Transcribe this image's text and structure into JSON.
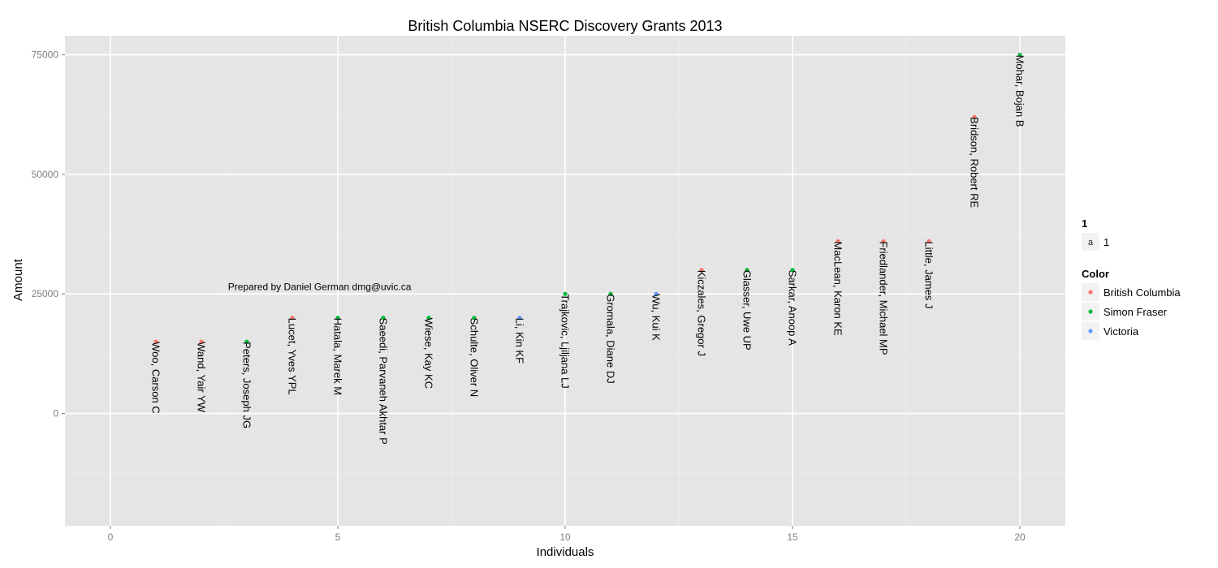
{
  "chart_data": {
    "type": "scatter",
    "title": "British Columbia NSERC Discovery Grants 2013",
    "xlabel": "Individuals",
    "ylabel": "Amount",
    "xlim": [
      -1,
      21
    ],
    "ylim": [
      -23500,
      79000
    ],
    "xticks": [
      0,
      5,
      10,
      15,
      20
    ],
    "yticks": [
      0,
      25000,
      50000,
      75000
    ],
    "grid": true,
    "annotation": {
      "text": "Prepared by Daniel German dmg@uvic.ca",
      "x": 4.6,
      "y": 26500
    },
    "legend_position": "right",
    "legend_size": {
      "title": "1",
      "key": "a",
      "label": "1"
    },
    "legend_color": {
      "title": "Color",
      "entries": [
        {
          "name": "British Columbia",
          "color": "#F8766D"
        },
        {
          "name": "Simon Fraser",
          "color": "#00BA38"
        },
        {
          "name": "Victoria",
          "color": "#619CFF"
        }
      ]
    },
    "points": [
      {
        "x": 1,
        "y": 15000,
        "group": "British Columbia",
        "label": "Woo, Carson C"
      },
      {
        "x": 2,
        "y": 15000,
        "group": "British Columbia",
        "label": "Wand, Yair YW"
      },
      {
        "x": 3,
        "y": 15000,
        "group": "Simon Fraser",
        "label": "Peters, Joseph JG"
      },
      {
        "x": 4,
        "y": 20000,
        "group": "British Columbia",
        "label": "Lucet, Yves YPL"
      },
      {
        "x": 5,
        "y": 20000,
        "group": "Simon Fraser",
        "label": "Hatala, Marek M"
      },
      {
        "x": 6,
        "y": 20000,
        "group": "Simon Fraser",
        "label": "Saeedi, Parvaneh Akhtar P"
      },
      {
        "x": 7,
        "y": 20000,
        "group": "Simon Fraser",
        "label": "Wiese, Kay KC"
      },
      {
        "x": 8,
        "y": 20000,
        "group": "Simon Fraser",
        "label": "Schulte, Oliver N"
      },
      {
        "x": 9,
        "y": 20000,
        "group": "Victoria",
        "label": "Li, Kin KF"
      },
      {
        "x": 10,
        "y": 25000,
        "group": "Simon Fraser",
        "label": "Trajkovic, Ljiljana LJ"
      },
      {
        "x": 11,
        "y": 25000,
        "group": "Simon Fraser",
        "label": "Gromala, Diane DJ"
      },
      {
        "x": 12,
        "y": 25000,
        "group": "Victoria",
        "label": "Wu, Kui K"
      },
      {
        "x": 13,
        "y": 30000,
        "group": "British Columbia",
        "label": "Kiczales, Gregor J"
      },
      {
        "x": 14,
        "y": 30000,
        "group": "Simon Fraser",
        "label": "Glasser, Uwe UP"
      },
      {
        "x": 15,
        "y": 30000,
        "group": "Simon Fraser",
        "label": "Sarkar, Anoop A"
      },
      {
        "x": 16,
        "y": 36000,
        "group": "British Columbia",
        "label": "MacLean, Karon KE"
      },
      {
        "x": 17,
        "y": 36000,
        "group": "British Columbia",
        "label": "Friedlander, Michael MP"
      },
      {
        "x": 18,
        "y": 36000,
        "group": "British Columbia",
        "label": "Little, James J"
      },
      {
        "x": 19,
        "y": 62000,
        "group": "British Columbia",
        "label": "Bridson, Robert RE"
      },
      {
        "x": 20,
        "y": 75000,
        "group": "Simon Fraser",
        "label": "Mohar, Bojan B"
      }
    ]
  }
}
